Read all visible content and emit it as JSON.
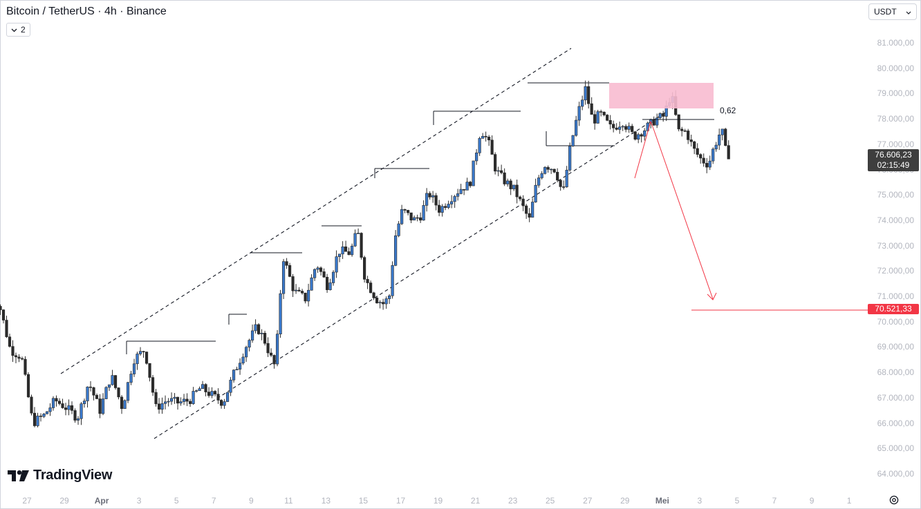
{
  "header": {
    "symbol_title": "Bitcoin / TetherUS · 4h · Binance",
    "layers_count": "2",
    "currency": "USDT"
  },
  "branding": {
    "logo_text": "TradingView"
  },
  "colors": {
    "up_candle": "#3a78c9",
    "down_candle": "#2b2b2b",
    "target_red": "#f23645",
    "supply_zone": "#f8bbd0",
    "current_price_bg": "#3e3e3e"
  },
  "price_axis": {
    "labels": [
      "81.000,00",
      "80.000,00",
      "79.000,00",
      "78.000,00",
      "77.000,00",
      "76.000,00",
      "75.000,00",
      "74.000,00",
      "73.000,00",
      "72.000,00",
      "71.000,00",
      "70.000,00",
      "69.000,00",
      "68.000,00",
      "67.000,00",
      "66.000,00",
      "65.000,00",
      "64.000,00"
    ],
    "current_price": "76.606,23",
    "countdown": "02:15:49",
    "target_price": "70.521,33"
  },
  "time_axis": [
    {
      "t": "27",
      "b": false
    },
    {
      "t": "29",
      "b": false
    },
    {
      "t": "Apr",
      "b": true
    },
    {
      "t": "3",
      "b": false
    },
    {
      "t": "5",
      "b": false
    },
    {
      "t": "7",
      "b": false
    },
    {
      "t": "9",
      "b": false
    },
    {
      "t": "11",
      "b": false
    },
    {
      "t": "13",
      "b": false
    },
    {
      "t": "15",
      "b": false
    },
    {
      "t": "17",
      "b": false
    },
    {
      "t": "19",
      "b": false
    },
    {
      "t": "21",
      "b": false
    },
    {
      "t": "23",
      "b": false
    },
    {
      "t": "25",
      "b": false
    },
    {
      "t": "27",
      "b": false
    },
    {
      "t": "29",
      "b": false
    },
    {
      "t": "Mei",
      "b": true
    },
    {
      "t": "3",
      "b": false
    },
    {
      "t": "5",
      "b": false
    },
    {
      "t": "7",
      "b": false
    },
    {
      "t": "9",
      "b": false
    },
    {
      "t": "1",
      "b": false
    }
  ],
  "annotations": {
    "fib_label": "0,62"
  },
  "chart_data": {
    "type": "candlestick",
    "title": "Bitcoin / TetherUS · 4h · Binance",
    "ylim": [
      63700,
      81800
    ],
    "x_range": [
      "Mar 26",
      "May 12"
    ],
    "candle_days_per_bar": 0.1667,
    "start_day_index": 0,
    "waypoints": [
      [
        0.0,
        71100
      ],
      [
        0.6,
        70700
      ],
      [
        1.2,
        68900
      ],
      [
        1.8,
        68600
      ],
      [
        2.4,
        66000
      ],
      [
        3.0,
        66300
      ],
      [
        3.6,
        66900
      ],
      [
        4.2,
        66600
      ],
      [
        4.8,
        66200
      ],
      [
        5.4,
        67600
      ],
      [
        6.0,
        66500
      ],
      [
        6.6,
        67900
      ],
      [
        7.2,
        66600
      ],
      [
        7.8,
        68500
      ],
      [
        8.4,
        68900
      ],
      [
        9.0,
        66600
      ],
      [
        9.6,
        66900
      ],
      [
        10.2,
        66800
      ],
      [
        10.8,
        66900
      ],
      [
        11.4,
        67400
      ],
      [
        12.0,
        67100
      ],
      [
        12.6,
        66800
      ],
      [
        13.2,
        68000
      ],
      [
        13.8,
        69000
      ],
      [
        14.4,
        69800
      ],
      [
        14.8,
        69300
      ],
      [
        15.2,
        68500
      ],
      [
        15.4,
        68200
      ],
      [
        15.8,
        72600
      ],
      [
        16.4,
        71200
      ],
      [
        17.0,
        70900
      ],
      [
        17.6,
        72300
      ],
      [
        18.2,
        71400
      ],
      [
        18.8,
        72800
      ],
      [
        19.4,
        72700
      ],
      [
        19.8,
        73600
      ],
      [
        20.2,
        71700
      ],
      [
        20.8,
        70900
      ],
      [
        21.2,
        70700
      ],
      [
        21.5,
        71000
      ],
      [
        21.8,
        73300
      ],
      [
        22.2,
        74400
      ],
      [
        22.8,
        74000
      ],
      [
        23.2,
        74200
      ],
      [
        23.6,
        75100
      ],
      [
        24.2,
        74400
      ],
      [
        24.8,
        74900
      ],
      [
        25.4,
        75300
      ],
      [
        25.8,
        75400
      ],
      [
        26.4,
        77600
      ],
      [
        26.8,
        77100
      ],
      [
        27.2,
        76000
      ],
      [
        27.6,
        75600
      ],
      [
        28.2,
        75200
      ],
      [
        28.6,
        74600
      ],
      [
        29.0,
        74000
      ],
      [
        29.4,
        75500
      ],
      [
        29.8,
        76200
      ],
      [
        30.4,
        76000
      ],
      [
        30.8,
        75000
      ],
      [
        31.2,
        76900
      ],
      [
        31.6,
        78200
      ],
      [
        32.0,
        79200
      ],
      [
        32.4,
        77900
      ],
      [
        32.8,
        78200
      ],
      [
        33.4,
        77600
      ],
      [
        34.0,
        77900
      ],
      [
        34.6,
        77300
      ],
      [
        35.2,
        77600
      ],
      [
        35.8,
        78000
      ],
      [
        36.2,
        78100
      ],
      [
        36.6,
        79000
      ],
      [
        37.0,
        77500
      ],
      [
        37.4,
        77500
      ],
      [
        37.8,
        76800
      ],
      [
        38.2,
        76400
      ],
      [
        38.6,
        76200
      ],
      [
        38.9,
        76900
      ],
      [
        39.3,
        77600
      ],
      [
        39.55,
        76600
      ]
    ]
  }
}
